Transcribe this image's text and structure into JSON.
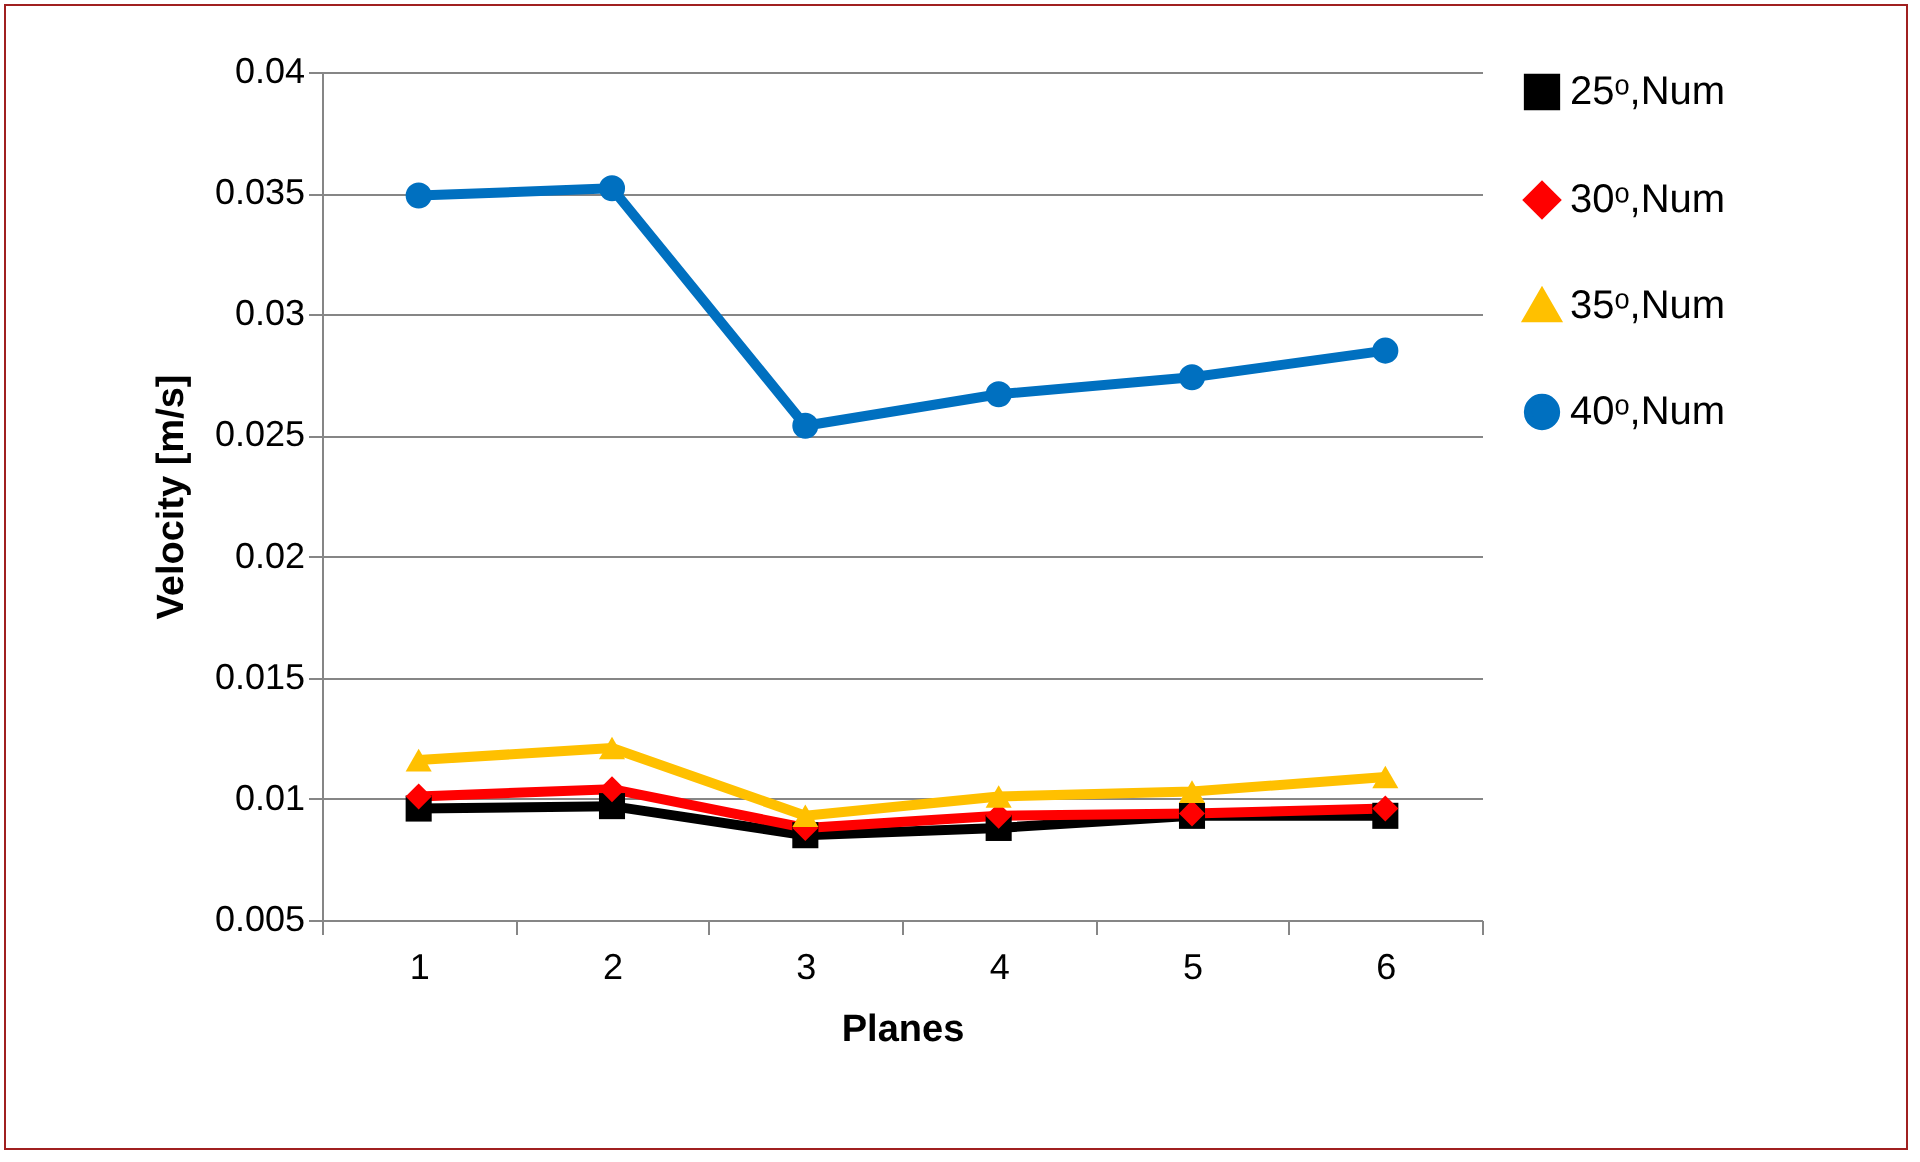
{
  "chart_data": {
    "type": "line",
    "xlabel": "Planes",
    "ylabel": "Velocity [m/s]",
    "categories": [
      "1",
      "2",
      "3",
      "4",
      "5",
      "6"
    ],
    "ylim": [
      0.005,
      0.04
    ],
    "yticks": [
      0.005,
      0.01,
      0.015,
      0.02,
      0.025,
      0.03,
      0.035,
      0.04
    ],
    "grid": "y",
    "legend": "right",
    "series": [
      {
        "name": "25ᵒ,Num",
        "color": "#000000",
        "marker": "square",
        "values": [
          0.0096,
          0.0097,
          0.0085,
          0.0088,
          0.0093,
          0.0093
        ]
      },
      {
        "name": "30ᵒ,Num",
        "color": "#ff0000",
        "marker": "diamond",
        "values": [
          0.0101,
          0.0104,
          0.0088,
          0.0093,
          0.0094,
          0.0096
        ]
      },
      {
        "name": "35ᵒ,Num",
        "color": "#ffc000",
        "marker": "triangle",
        "values": [
          0.0116,
          0.0121,
          0.0093,
          0.0101,
          0.0103,
          0.0109
        ]
      },
      {
        "name": "40ᵒ,Num",
        "color": "#0070c0",
        "marker": "circle",
        "values": [
          0.0349,
          0.0352,
          0.0254,
          0.0267,
          0.0274,
          0.0285
        ]
      }
    ]
  }
}
